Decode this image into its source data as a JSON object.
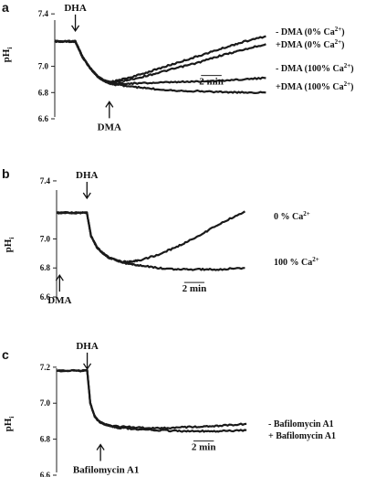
{
  "chart_data": [
    {
      "panel": "a",
      "type": "line",
      "ylabel": "pHi",
      "ylim": [
        6.6,
        7.45
      ],
      "y_ticks": [
        "7.4",
        "7.0",
        "6.8",
        "6.6"
      ],
      "y_tick_values": [
        7.4,
        7.0,
        6.8,
        6.6
      ],
      "xlim": [
        0,
        21
      ],
      "x_units": "min",
      "scale_bar": {
        "label": "2 min",
        "length": 2,
        "x_start": 14.2,
        "y": 6.93
      },
      "annotations": [
        {
          "label": "DHA",
          "x": 2.0,
          "y": 7.27,
          "arrow": "down"
        },
        {
          "label": "DMA",
          "x": 5.3,
          "y": 6.73,
          "arrow": "up"
        }
      ],
      "series": [
        {
          "name": "- DMA (0% Ca2+)",
          "label_main": "- DMA (0% Ca",
          "label_sup": "2+",
          "label_end": ")",
          "x": [
            0,
            2.0,
            2.7,
            3.5,
            4.2,
            4.8,
            5.3,
            6,
            8,
            10,
            12,
            14,
            16,
            18,
            20.5
          ],
          "y": [
            7.19,
            7.19,
            7.07,
            6.98,
            6.92,
            6.89,
            6.88,
            6.89,
            6.93,
            6.98,
            7.03,
            7.08,
            7.13,
            7.18,
            7.23
          ]
        },
        {
          "name": "+DMA (0% Ca2+)",
          "label_main": "+DMA (0% Ca",
          "label_sup": "2+",
          "label_end": ")",
          "x": [
            0,
            2.0,
            2.7,
            3.5,
            4.2,
            4.8,
            5.3,
            6,
            8,
            10,
            12,
            14,
            16,
            18,
            20.5
          ],
          "y": [
            7.19,
            7.19,
            7.07,
            6.98,
            6.92,
            6.89,
            6.875,
            6.88,
            6.91,
            6.95,
            6.99,
            7.03,
            7.08,
            7.12,
            7.17
          ]
        },
        {
          "name": "- DMA (100% Ca2+)",
          "label_main": "- DMA (100% Ca",
          "label_sup": "2+",
          "label_end": ")",
          "x": [
            0,
            2.0,
            2.7,
            3.5,
            4.2,
            4.8,
            5.3,
            6,
            8,
            10,
            12,
            14,
            16,
            18,
            20.5
          ],
          "y": [
            7.19,
            7.19,
            7.07,
            6.98,
            6.92,
            6.89,
            6.875,
            6.87,
            6.87,
            6.875,
            6.88,
            6.885,
            6.89,
            6.9,
            6.91
          ]
        },
        {
          "name": "+DMA (100% Ca2+)",
          "label_main": "+DMA (100% Ca",
          "label_sup": "2+",
          "label_end": ")",
          "x": [
            0,
            2.0,
            2.7,
            3.5,
            4.2,
            4.8,
            5.3,
            6,
            8,
            10,
            12,
            14,
            16,
            18,
            20.5
          ],
          "y": [
            7.19,
            7.19,
            7.07,
            6.98,
            6.92,
            6.89,
            6.87,
            6.86,
            6.84,
            6.825,
            6.815,
            6.81,
            6.805,
            6.8,
            6.8
          ]
        }
      ]
    },
    {
      "panel": "b",
      "type": "line",
      "ylabel": "pHi",
      "ylim": [
        6.6,
        7.45
      ],
      "y_ticks": [
        "7.4",
        "7.0",
        "6.8",
        "6.6"
      ],
      "y_tick_values": [
        7.4,
        7.0,
        6.8,
        6.6
      ],
      "xlim": [
        0,
        21
      ],
      "x_units": "min",
      "scale_bar": {
        "label": "2 min",
        "length": 2,
        "x_start": 12.6,
        "y": 6.7
      },
      "annotations": [
        {
          "label": "DHA",
          "x": 3.0,
          "y": 7.28,
          "arrow": "down"
        },
        {
          "label": "DMA",
          "x": 0.3,
          "y": 6.75,
          "arrow": "up"
        }
      ],
      "series": [
        {
          "name": "0 % Ca2+",
          "label_main": "0 % Ca",
          "label_sup": "2+",
          "label_end": "",
          "x": [
            0,
            3.0,
            3.4,
            4,
            4.6,
            5.2,
            6,
            7,
            8,
            10,
            12,
            14,
            16,
            18.6
          ],
          "y": [
            7.18,
            7.18,
            7.02,
            6.94,
            6.9,
            6.87,
            6.85,
            6.84,
            6.85,
            6.89,
            6.95,
            7.02,
            7.1,
            7.19
          ]
        },
        {
          "name": "100 % Ca2+",
          "label_main": "100 % Ca",
          "label_sup": "2+",
          "label_end": "",
          "x": [
            0,
            3.0,
            3.4,
            4,
            4.6,
            5.2,
            6,
            7,
            8,
            10,
            12,
            14,
            16,
            18.6
          ],
          "y": [
            7.18,
            7.18,
            7.02,
            6.94,
            6.9,
            6.87,
            6.85,
            6.83,
            6.82,
            6.8,
            6.79,
            6.79,
            6.79,
            6.8
          ]
        }
      ]
    },
    {
      "panel": "c",
      "type": "line",
      "ylabel": "pHi",
      "ylim": [
        6.6,
        7.25
      ],
      "y_ticks": [
        "7.2",
        "7.0",
        "6.8",
        "6.6"
      ],
      "y_tick_values": [
        7.2,
        7.0,
        6.8,
        6.6
      ],
      "xlim": [
        0,
        21
      ],
      "x_units": "min",
      "scale_bar": {
        "label": "2 min",
        "length": 2,
        "x_start": 13.4,
        "y": 6.79
      },
      "annotations": [
        {
          "label": "DHA",
          "x": 3.0,
          "y": 7.19,
          "arrow": "down"
        },
        {
          "label": "Bafilomycin A1",
          "x": 4.3,
          "y": 6.77,
          "arrow": "up"
        }
      ],
      "series": [
        {
          "name": "- Bafilomycin A1",
          "label_main": "- Bafilomycin A1",
          "label_sup": "",
          "label_end": "",
          "x": [
            0,
            3.0,
            3.3,
            3.7,
            4.1,
            4.6,
            5.2,
            6,
            8,
            10,
            12,
            14,
            16,
            18.6
          ],
          "y": [
            7.18,
            7.18,
            7.0,
            6.93,
            6.9,
            6.885,
            6.875,
            6.87,
            6.865,
            6.86,
            6.865,
            6.87,
            6.875,
            6.885
          ]
        },
        {
          "name": "+ Bafilomycin A1",
          "label_main": "+ Bafilomycin A1",
          "label_sup": "",
          "label_end": "",
          "x": [
            0,
            3.0,
            3.3,
            3.7,
            4.1,
            4.6,
            5.2,
            6,
            8,
            10,
            12,
            14,
            16,
            18.6
          ],
          "y": [
            7.18,
            7.18,
            7.0,
            6.93,
            6.9,
            6.885,
            6.875,
            6.865,
            6.855,
            6.85,
            6.845,
            6.845,
            6.845,
            6.85
          ]
        }
      ]
    }
  ]
}
